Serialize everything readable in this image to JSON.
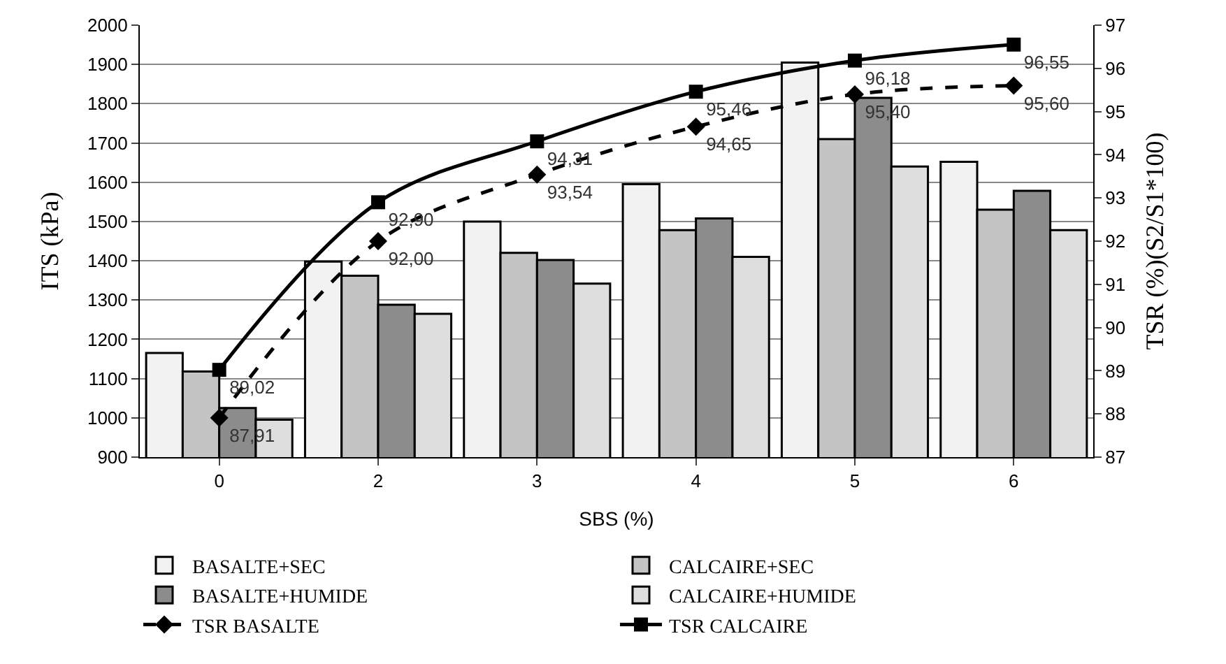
{
  "chart_data": {
    "type": "bar",
    "xlabel": "SBS (%)",
    "ylabel": "ITS (kPa)",
    "y2label": "TSR (%)(S2/S1*100)",
    "categories": [
      "0",
      "2",
      "3",
      "4",
      "5",
      "6"
    ],
    "series": [
      {
        "name": "BASALTE+SEC",
        "color": "#f2f2f2",
        "values": [
          1165,
          1398,
          1500,
          1595,
          1905,
          1652
        ]
      },
      {
        "name": "CALCAIRE+SEC",
        "color": "#c4c4c4",
        "values": [
          1118,
          1362,
          1420,
          1478,
          1710,
          1530
        ]
      },
      {
        "name": "BASALTE+HUMIDE",
        "color": "#8c8c8c",
        "values": [
          1025,
          1288,
          1402,
          1508,
          1815,
          1578
        ]
      },
      {
        "name": "CALCAIRE+HUMIDE",
        "color": "#dedede",
        "values": [
          995,
          1265,
          1342,
          1410,
          1640,
          1478
        ]
      },
      {
        "name": "TSR BASALTE",
        "type": "line",
        "axis": "y2",
        "color": "#000000",
        "marker": "diamond",
        "line_style": "dashed",
        "values": [
          87.91,
          92.0,
          93.54,
          94.65,
          95.4,
          95.6
        ],
        "value_labels": [
          "87,91",
          "92,00",
          "93,54",
          "94,65",
          "95,40",
          "95,60"
        ]
      },
      {
        "name": "TSR CALCAIRE",
        "type": "line",
        "axis": "y2",
        "color": "#000000",
        "marker": "square",
        "line_style": "solid",
        "values": [
          89.02,
          92.9,
          94.31,
          95.46,
          96.18,
          96.55
        ],
        "value_labels": [
          "89,02",
          "92,90",
          "94,31",
          "95,46",
          "96,18",
          "96,55"
        ]
      }
    ],
    "ylim": [
      900,
      2000
    ],
    "yticks": [
      900,
      1000,
      1100,
      1200,
      1300,
      1400,
      1500,
      1600,
      1700,
      1800,
      1900,
      2000
    ],
    "y2lim": [
      87,
      97
    ],
    "y2ticks": [
      87,
      88,
      89,
      90,
      91,
      92,
      93,
      94,
      95,
      96,
      97
    ],
    "grid": "y",
    "legend": "bottom"
  }
}
